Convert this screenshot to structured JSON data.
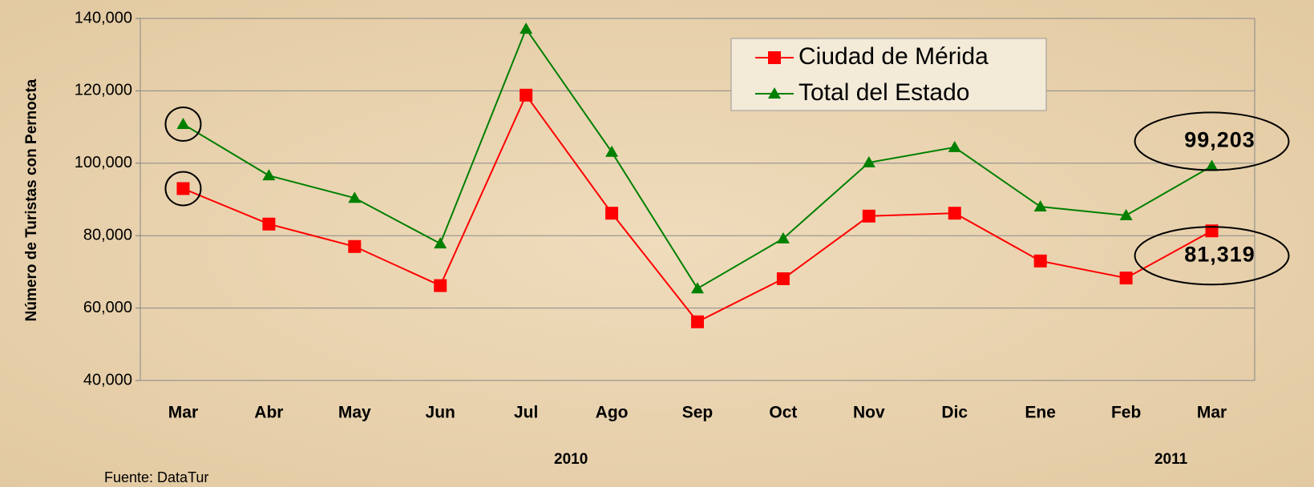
{
  "chart_data": {
    "type": "line",
    "y_axis_label": "Número de Turistas con Pernocta",
    "categories": [
      "Mar",
      "Abr",
      "May",
      "Jun",
      "Jul",
      "Ago",
      "Sep",
      "Oct",
      "Nov",
      "Dic",
      "Ene",
      "Feb",
      "Mar"
    ],
    "year_labels": [
      {
        "category": 4,
        "label": "2010"
      },
      {
        "category": 11,
        "label": "2011"
      }
    ],
    "source": "Fuente: DataTur",
    "series": [
      {
        "name": "Ciudad de Mérida",
        "color": "#ff0000",
        "marker": "square",
        "values": [
          93000,
          83200,
          77000,
          66200,
          118800,
          86200,
          56200,
          68100,
          85400,
          86200,
          73000,
          68300,
          81319
        ],
        "value_labels": [
          null,
          null,
          null,
          null,
          null,
          null,
          null,
          null,
          null,
          null,
          null,
          null,
          "81,319"
        ]
      },
      {
        "name": "Total del Estado",
        "color": "#008000",
        "marker": "triangle",
        "values": [
          110800,
          96600,
          90400,
          77800,
          137100,
          103100,
          65400,
          79200,
          100200,
          104400,
          88000,
          85600,
          99203
        ],
        "value_labels": [
          null,
          null,
          null,
          null,
          null,
          null,
          null,
          null,
          null,
          null,
          null,
          null,
          "99,203"
        ]
      }
    ],
    "ylim": [
      40000,
      140000
    ],
    "yticks": [
      {
        "value": 40000,
        "label": "40,000"
      },
      {
        "value": 60000,
        "label": "60,000"
      },
      {
        "value": 80000,
        "label": "80,000"
      },
      {
        "value": 100000,
        "label": "100,000"
      },
      {
        "value": 120000,
        "label": "120,000"
      },
      {
        "value": 140000,
        "label": "140,000"
      }
    ],
    "grid": true,
    "legend": "top-right"
  }
}
